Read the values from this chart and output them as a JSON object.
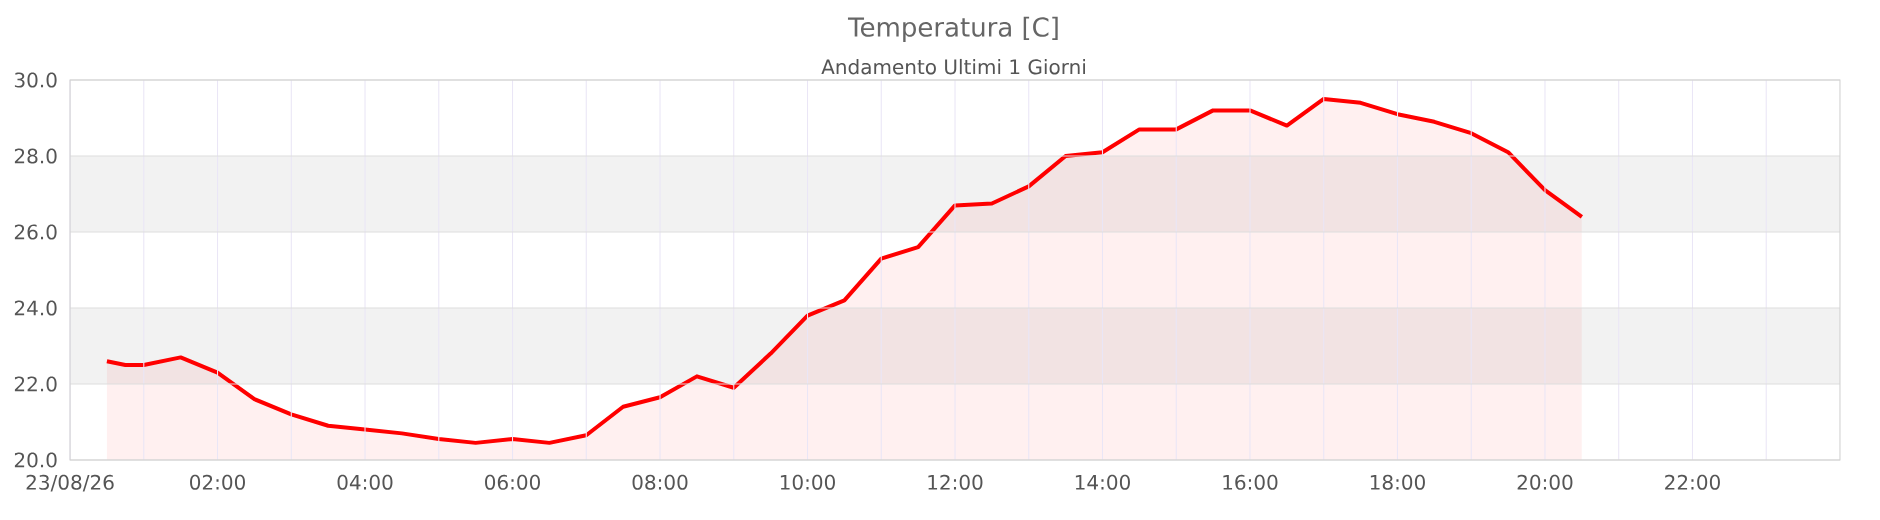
{
  "chart_data": {
    "type": "area",
    "title": "Temperatura [C]",
    "subtitle": "Andamento Ultimi 1 Giorni",
    "x": [
      0.5,
      0.75,
      1.0,
      1.5,
      2.0,
      2.5,
      3.0,
      3.5,
      4.0,
      4.5,
      5.0,
      5.5,
      6.0,
      6.5,
      7.0,
      7.5,
      8.0,
      8.5,
      9.0,
      9.5,
      10.0,
      10.5,
      11.0,
      11.5,
      12.0,
      12.5,
      13.0,
      13.5,
      14.0,
      14.5,
      15.0,
      15.5,
      16.0,
      16.5,
      17.0,
      17.5,
      18.0,
      18.5,
      19.0,
      19.5,
      20.0,
      20.5
    ],
    "series": [
      {
        "color": "#ff0000",
        "values": [
          22.6,
          22.5,
          22.5,
          22.7,
          22.3,
          21.6,
          21.2,
          20.9,
          20.8,
          20.7,
          20.55,
          20.45,
          20.55,
          20.45,
          20.65,
          21.4,
          21.65,
          22.2,
          21.9,
          22.8,
          23.8,
          24.2,
          25.3,
          25.6,
          26.7,
          26.75,
          27.2,
          28.0,
          28.1,
          28.7,
          28.7,
          29.2,
          29.2,
          28.8,
          29.5,
          29.4,
          29.1,
          28.9,
          28.6,
          28.1,
          27.1,
          26.4
        ]
      }
    ],
    "xlim": [
      0,
      24
    ],
    "xticks": [
      {
        "value": 0,
        "label": "23/08/26"
      },
      {
        "value": 1,
        "label": null
      },
      {
        "value": 2,
        "label": "02:00"
      },
      {
        "value": 3,
        "label": null
      },
      {
        "value": 4,
        "label": "04:00"
      },
      {
        "value": 5,
        "label": null
      },
      {
        "value": 6,
        "label": "06:00"
      },
      {
        "value": 7,
        "label": null
      },
      {
        "value": 8,
        "label": "08:00"
      },
      {
        "value": 9,
        "label": null
      },
      {
        "value": 10,
        "label": "10:00"
      },
      {
        "value": 11,
        "label": null
      },
      {
        "value": 12,
        "label": "12:00"
      },
      {
        "value": 13,
        "label": null
      },
      {
        "value": 14,
        "label": "14:00"
      },
      {
        "value": 15,
        "label": null
      },
      {
        "value": 16,
        "label": "16:00"
      },
      {
        "value": 17,
        "label": null
      },
      {
        "value": 18,
        "label": "18:00"
      },
      {
        "value": 19,
        "label": null
      },
      {
        "value": 20,
        "label": "20:00"
      },
      {
        "value": 21,
        "label": null
      },
      {
        "value": 22,
        "label": "22:00"
      },
      {
        "value": 23,
        "label": null
      }
    ],
    "ylim": [
      20,
      30
    ],
    "yticks": [
      {
        "value": 20,
        "label": "20.0"
      },
      {
        "value": 22,
        "label": "22.0"
      },
      {
        "value": 24,
        "label": "24.0"
      },
      {
        "value": 26,
        "label": "26.0"
      },
      {
        "value": 28,
        "label": "28.0"
      },
      {
        "value": 30,
        "label": "30.0"
      }
    ],
    "bands": [
      {
        "axis": "y",
        "from": 22,
        "to": 24,
        "color": "#f2f2f2"
      },
      {
        "axis": "y",
        "from": 26,
        "to": 28,
        "color": "#f2f2f2"
      }
    ],
    "grid": true
  }
}
